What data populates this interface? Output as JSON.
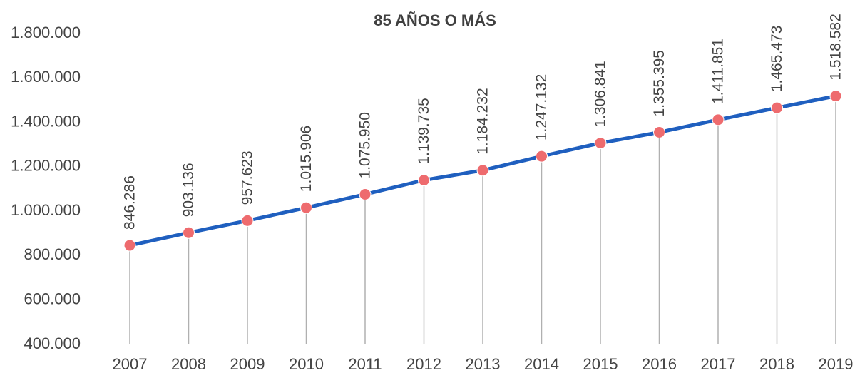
{
  "chart_data": {
    "type": "line",
    "title": "85 AÑOS O MÁS",
    "categories": [
      "2007",
      "2008",
      "2009",
      "2010",
      "2011",
      "2012",
      "2013",
      "2014",
      "2015",
      "2016",
      "2017",
      "2018",
      "2019"
    ],
    "series": [
      {
        "name": "85 AÑOS O MÁS",
        "color": "#1f5fbf",
        "marker_color": "#ee6b6e",
        "values": [
          846286,
          903136,
          957623,
          1015906,
          1075950,
          1139735,
          1184232,
          1247132,
          1306841,
          1355395,
          1411851,
          1465473,
          1518582
        ],
        "value_labels": [
          "846.286",
          "903.136",
          "957.623",
          "1.015.906",
          "1.075.950",
          "1.139.735",
          "1.184.232",
          "1.247.132",
          "1.306.841",
          "1.355.395",
          "1.411.851",
          "1.465.473",
          "1.518.582"
        ]
      }
    ],
    "ylim": [
      400000,
      1800000
    ],
    "yticks": [
      {
        "value": 400000,
        "label": "400.000"
      },
      {
        "value": 600000,
        "label": "600.000"
      },
      {
        "value": 800000,
        "label": "800.000"
      },
      {
        "value": 1000000,
        "label": "1.000.000"
      },
      {
        "value": 1200000,
        "label": "1.200.000"
      },
      {
        "value": 1400000,
        "label": "1.400.000"
      },
      {
        "value": 1600000,
        "label": "1.600.000"
      },
      {
        "value": 1800000,
        "label": "1.800.000"
      }
    ],
    "grid": false,
    "drop_lines": true
  }
}
